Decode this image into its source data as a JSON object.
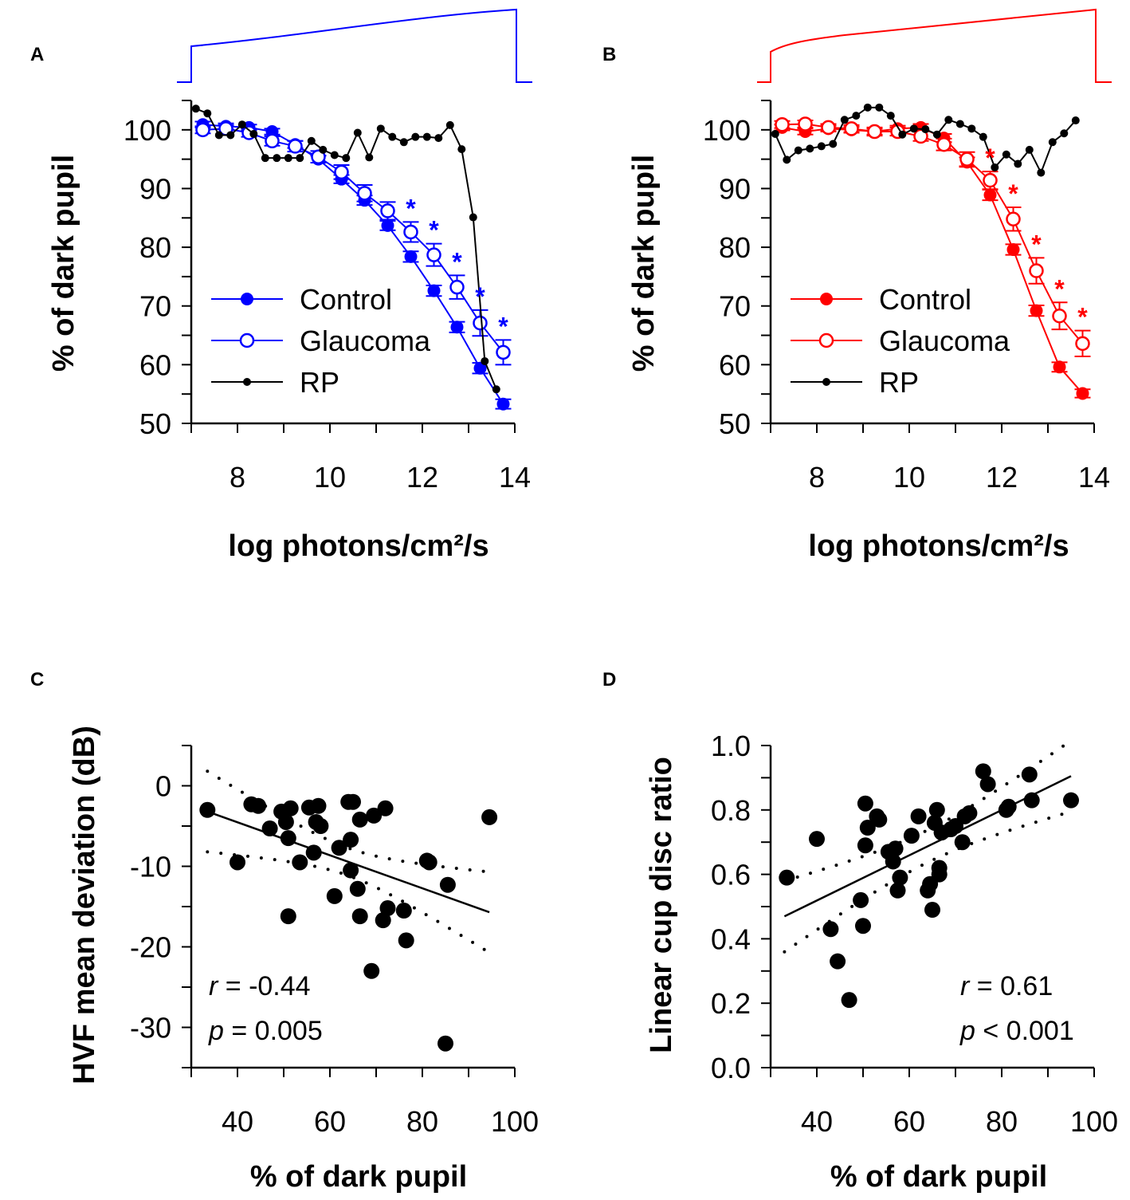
{
  "chart_data": [
    {
      "panel": "A",
      "type": "line",
      "xlabel": "log photons/cm²/s",
      "ylabel": "% of dark pupil",
      "xlim": [
        7,
        14
      ],
      "ylim": [
        50,
        105
      ],
      "xticks": [
        8,
        10,
        12,
        14
      ],
      "yticks": [
        50,
        60,
        70,
        80,
        90,
        100
      ],
      "color": "#0000ff",
      "series": [
        {
          "name": "Control",
          "marker": "filled",
          "x": [
            7.25,
            7.75,
            8.25,
            8.75,
            9.25,
            9.75,
            10.25,
            10.75,
            11.25,
            11.75,
            12.25,
            12.75,
            13.25,
            13.75
          ],
          "y": [
            100.9,
            100.6,
            100.4,
            99.7,
            97.5,
            95.0,
            91.6,
            88.0,
            83.7,
            78.4,
            72.6,
            66.4,
            59.4,
            53.3
          ],
          "err": [
            0.5,
            0.5,
            0.5,
            0.5,
            0.6,
            0.6,
            0.7,
            0.8,
            0.8,
            0.9,
            0.9,
            0.9,
            0.9,
            0.8
          ]
        },
        {
          "name": "Glaucoma",
          "marker": "open",
          "x": [
            7.25,
            7.75,
            8.25,
            8.75,
            9.25,
            9.75,
            10.25,
            10.75,
            11.25,
            11.75,
            12.25,
            12.75,
            13.25,
            13.75
          ],
          "y": [
            100.0,
            100.2,
            99.5,
            98.1,
            97.2,
            95.4,
            92.8,
            89.2,
            86.2,
            82.6,
            78.7,
            73.2,
            67.1,
            62.1
          ],
          "err": [
            0.6,
            0.6,
            0.7,
            0.8,
            0.9,
            1.0,
            1.2,
            1.4,
            1.5,
            1.7,
            1.9,
            2.0,
            2.2,
            2.1
          ]
        },
        {
          "name": "RP",
          "marker": "small",
          "x": [
            7.1,
            7.35,
            7.6,
            7.85,
            8.1,
            8.35,
            8.6,
            8.85,
            9.1,
            9.35,
            9.6,
            9.85,
            10.1,
            10.35,
            10.6,
            10.85,
            11.1,
            11.35,
            11.6,
            11.85,
            12.1,
            12.35,
            12.6,
            12.85,
            13.1,
            13.35,
            13.6
          ],
          "y": [
            103.6,
            102.8,
            99.1,
            99.1,
            100.9,
            99.3,
            95.2,
            95.2,
            95.2,
            95.2,
            98.1,
            96.6,
            95.7,
            95.2,
            99.5,
            95.3,
            100.2,
            98.8,
            97.9,
            98.8,
            98.8,
            98.6,
            100.8,
            96.7,
            85.1,
            60.6,
            55.8
          ]
        }
      ],
      "significance_marker": "*",
      "significant_x": [
        11.75,
        12.25,
        12.75,
        13.25,
        13.75
      ]
    },
    {
      "panel": "B",
      "type": "line",
      "xlabel": "log photons/cm²/s",
      "ylabel": "% of dark pupil",
      "xlim": [
        7,
        14
      ],
      "ylim": [
        50,
        105
      ],
      "xticks": [
        8,
        10,
        12,
        14
      ],
      "yticks": [
        50,
        60,
        70,
        80,
        90,
        100
      ],
      "color": "#ff0000",
      "series": [
        {
          "name": "Control",
          "marker": "filled",
          "x": [
            7.25,
            7.75,
            8.25,
            8.75,
            9.25,
            9.75,
            10.25,
            10.75,
            11.25,
            11.75,
            12.25,
            12.75,
            13.25,
            13.75
          ],
          "y": [
            100.4,
            99.7,
            100.2,
            100.0,
            99.7,
            100.2,
            100.4,
            98.6,
            94.5,
            88.9,
            79.6,
            69.2,
            59.6,
            55.1
          ],
          "err": [
            0.5,
            0.5,
            0.5,
            0.5,
            0.5,
            0.5,
            0.6,
            0.7,
            0.8,
            0.9,
            0.9,
            0.9,
            0.8,
            0.7
          ]
        },
        {
          "name": "Glaucoma",
          "marker": "open",
          "x": [
            7.25,
            7.75,
            8.25,
            8.75,
            9.25,
            9.75,
            10.25,
            10.75,
            11.25,
            11.75,
            12.25,
            12.75,
            13.25,
            13.75
          ],
          "y": [
            100.9,
            101.0,
            100.4,
            100.2,
            99.7,
            99.7,
            98.9,
            97.5,
            95.0,
            91.4,
            84.8,
            76.0,
            68.3,
            63.6
          ],
          "err": [
            0.6,
            0.6,
            0.6,
            0.6,
            0.7,
            0.7,
            0.8,
            1.0,
            1.2,
            1.5,
            2.0,
            2.2,
            2.3,
            2.2
          ]
        },
        {
          "name": "RP",
          "marker": "small",
          "x": [
            7.1,
            7.35,
            7.6,
            7.85,
            8.1,
            8.35,
            8.6,
            8.85,
            9.1,
            9.35,
            9.6,
            9.85,
            10.1,
            10.35,
            10.6,
            10.85,
            11.1,
            11.35,
            11.6,
            11.85,
            12.1,
            12.35,
            12.6,
            12.85,
            13.1,
            13.35,
            13.6
          ],
          "y": [
            99.3,
            94.9,
            96.5,
            96.8,
            97.2,
            97.6,
            101.7,
            102.4,
            103.8,
            103.8,
            102.4,
            99.2,
            100.2,
            100.1,
            99.2,
            101.7,
            101.0,
            100.2,
            98.8,
            93.6,
            95.8,
            94.2,
            96.6,
            92.7,
            97.9,
            99.4,
            101.6
          ]
        }
      ],
      "significance_marker": "*",
      "significant_x": [
        11.75,
        12.25,
        12.75,
        13.25,
        13.75
      ]
    },
    {
      "panel": "C",
      "type": "scatter",
      "xlabel": "% of dark pupil",
      "ylabel": "HVF mean deviation (dB)",
      "xlim": [
        30,
        100
      ],
      "ylim": [
        -35,
        5
      ],
      "xticks": [
        40,
        60,
        80,
        100
      ],
      "yticks": [
        -30,
        -20,
        -10,
        0
      ],
      "points": [
        [
          33.5,
          -3
        ],
        [
          40,
          -9.5
        ],
        [
          43,
          -2.3
        ],
        [
          44.5,
          -2.5
        ],
        [
          47,
          -5.3
        ],
        [
          49.5,
          -3.2
        ],
        [
          50.5,
          -4.5
        ],
        [
          51,
          -6.5
        ],
        [
          51.5,
          -2.8
        ],
        [
          51,
          -16.2
        ],
        [
          53.5,
          -9.5
        ],
        [
          55.5,
          -2.7
        ],
        [
          56.5,
          -8.3
        ],
        [
          57,
          -4.5
        ],
        [
          57.5,
          -2.5
        ],
        [
          58,
          -5
        ],
        [
          61,
          -13.7
        ],
        [
          62,
          -7.7
        ],
        [
          64,
          -2
        ],
        [
          65,
          -2
        ],
        [
          64.5,
          -6.7
        ],
        [
          64.5,
          -10.5
        ],
        [
          66,
          -12.8
        ],
        [
          66.5,
          -4.2
        ],
        [
          66.5,
          -16.2
        ],
        [
          69,
          -23
        ],
        [
          69.5,
          -3.7
        ],
        [
          71.5,
          -16.7
        ],
        [
          72,
          -2.8
        ],
        [
          72.5,
          -15.2
        ],
        [
          76,
          -15.5
        ],
        [
          76.5,
          -19.2
        ],
        [
          81,
          -9.3
        ],
        [
          81.5,
          -9.5
        ],
        [
          85.5,
          -12.3
        ],
        [
          85,
          -32
        ],
        [
          94.5,
          -3.9
        ]
      ],
      "fit": {
        "slope": -0.205,
        "intercept": 3.67,
        "x_range": [
          33.5,
          94.5
        ],
        "ci_c0": 2.9,
        "ci_c1": 0.0238,
        "ci_center": 64
      },
      "annotations": [
        {
          "var": "r",
          "text": " = -0.44"
        },
        {
          "var": "p",
          "text": " = 0.005"
        }
      ]
    },
    {
      "panel": "D",
      "type": "scatter",
      "xlabel": "% of dark pupil",
      "ylabel": "Linear cup disc ratio",
      "xlim": [
        30,
        100
      ],
      "ylim": [
        0,
        1
      ],
      "xticks": [
        40,
        60,
        80,
        100
      ],
      "yticks": [
        0.0,
        0.2,
        0.4,
        0.6,
        0.8,
        1.0
      ],
      "ytick_labels": [
        "0.0",
        "0.2",
        "0.4",
        "0.6",
        "0.8",
        "1.0"
      ],
      "points": [
        [
          33.5,
          0.59
        ],
        [
          40,
          0.71
        ],
        [
          43,
          0.43
        ],
        [
          44.5,
          0.33
        ],
        [
          47,
          0.21
        ],
        [
          49.5,
          0.52
        ],
        [
          50,
          0.44
        ],
        [
          50.5,
          0.82
        ],
        [
          50.5,
          0.69
        ],
        [
          51,
          0.745
        ],
        [
          53,
          0.78
        ],
        [
          53.5,
          0.77
        ],
        [
          55.5,
          0.67
        ],
        [
          56.5,
          0.64
        ],
        [
          57,
          0.68
        ],
        [
          57.5,
          0.55
        ],
        [
          58,
          0.59
        ],
        [
          60.5,
          0.72
        ],
        [
          62,
          0.78
        ],
        [
          64,
          0.55
        ],
        [
          64.5,
          0.57
        ],
        [
          65,
          0.49
        ],
        [
          65.5,
          0.76
        ],
        [
          66,
          0.8
        ],
        [
          66.5,
          0.6
        ],
        [
          66.5,
          0.62
        ],
        [
          67,
          0.73
        ],
        [
          69,
          0.74
        ],
        [
          70,
          0.75
        ],
        [
          71.5,
          0.7
        ],
        [
          72,
          0.78
        ],
        [
          73,
          0.79
        ],
        [
          76,
          0.92
        ],
        [
          77,
          0.88
        ],
        [
          81,
          0.8
        ],
        [
          81.5,
          0.81
        ],
        [
          86,
          0.91
        ],
        [
          86.5,
          0.83
        ],
        [
          95,
          0.83
        ]
      ],
      "fit": {
        "slope": 0.00702,
        "intercept": 0.238,
        "x_range": [
          33,
          95
        ],
        "ci_c0": 0.0025,
        "ci_c1": 1e-05,
        "ci_center": 64
      },
      "annotations": [
        {
          "var": "r",
          "text": " = 0.61"
        },
        {
          "var": "p",
          "text": " < 0.001"
        }
      ]
    }
  ]
}
